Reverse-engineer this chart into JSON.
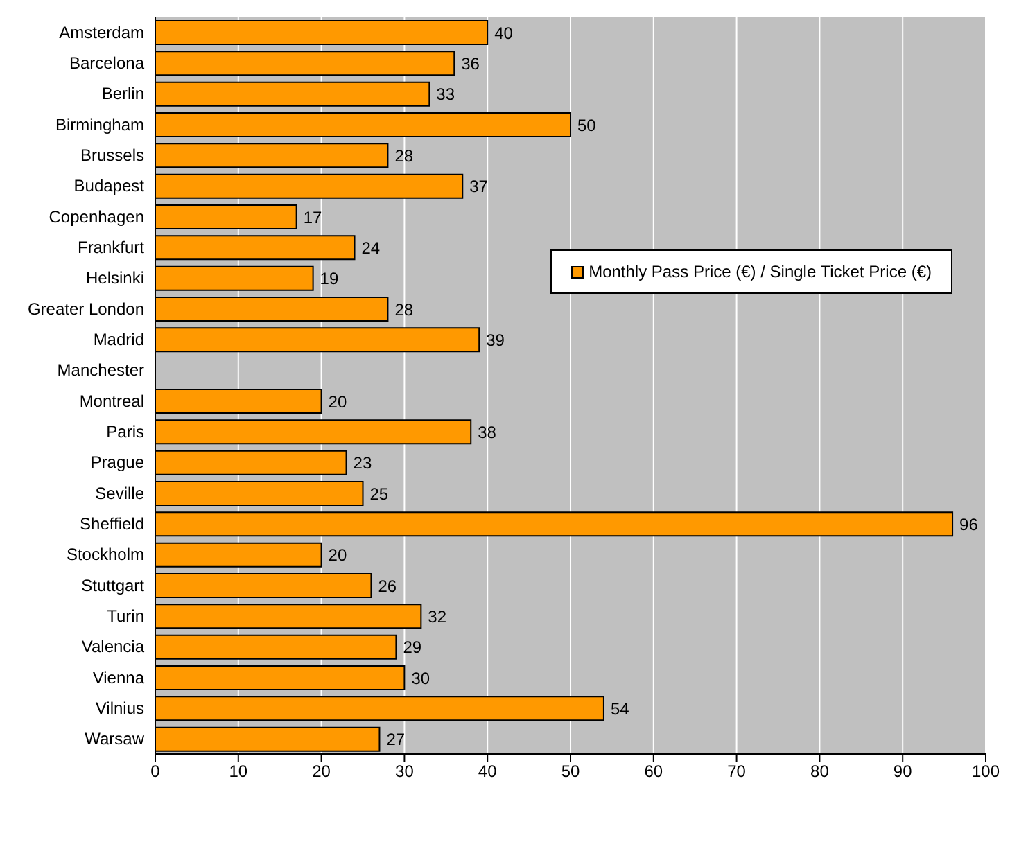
{
  "chart_data": {
    "type": "bar",
    "orientation": "horizontal",
    "categories": [
      "Amsterdam",
      "Barcelona",
      "Berlin",
      "Birmingham",
      "Brussels",
      "Budapest",
      "Copenhagen",
      "Frankfurt",
      "Helsinki",
      "Greater London",
      "Madrid",
      "Manchester",
      "Montreal",
      "Paris",
      "Prague",
      "Seville",
      "Sheffield",
      "Stockholm",
      "Stuttgart",
      "Turin",
      "Valencia",
      "Vienna",
      "Vilnius",
      "Warsaw"
    ],
    "series": [
      {
        "name": "Monthly Pass Price (€) / Single Ticket Price (€)",
        "color": "#ff9900",
        "values": [
          40,
          36,
          33,
          50,
          28,
          37,
          17,
          24,
          19,
          28,
          39,
          null,
          20,
          38,
          23,
          25,
          96,
          20,
          26,
          32,
          29,
          30,
          54,
          27
        ]
      }
    ],
    "xlim": [
      0,
      100
    ],
    "xticks": [
      0,
      10,
      20,
      30,
      40,
      50,
      60,
      70,
      80,
      90,
      100
    ],
    "grid": "x",
    "legend": "right",
    "data_labels": true
  }
}
